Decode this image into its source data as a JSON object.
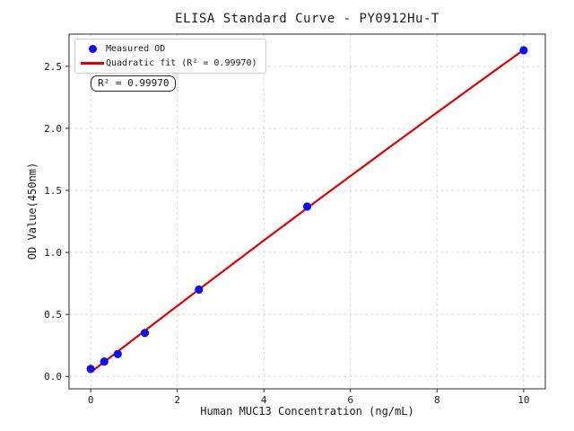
{
  "figure": {
    "background": "#ffffff"
  },
  "chart_data": {
    "type": "scatter",
    "title": "ELISA Standard Curve - PY0912Hu-T",
    "xlabel": "Human MUC13 Concentration (ng/mL)",
    "ylabel": "OD Value(450nm)",
    "xlim": [
      -0.5,
      10.5
    ],
    "ylim": [
      -0.1,
      2.76
    ],
    "xticks": [
      0,
      2,
      4,
      6,
      8,
      10
    ],
    "yticks": [
      0.0,
      0.5,
      1.0,
      1.5,
      2.0,
      2.5
    ],
    "grid": true,
    "grid_style": "dashed",
    "legend_position": "upper-left",
    "series": [
      {
        "name": "Measured OD",
        "type": "scatter",
        "marker": "circle",
        "color": "#0d0dee",
        "x": [
          0,
          0.313,
          0.625,
          1.25,
          2.5,
          5,
          10
        ],
        "y": [
          0.06,
          0.12,
          0.18,
          0.35,
          0.7,
          1.37,
          2.63
        ]
      },
      {
        "name": "Quadratic fit (R² = 0.99970)",
        "type": "line",
        "fit": "quadratic",
        "r_squared": "0.99970",
        "color": "#e00000",
        "x_range": [
          0,
          10
        ]
      }
    ],
    "annotation": {
      "text": "R² = 0.99970"
    }
  },
  "colors": {
    "spine": "#2b2b2b",
    "grid": "#d6d6d6",
    "text": "#1a1a1a",
    "legend_border": "#cccccc",
    "scatter": "#0d0dee",
    "fit_line": "#e00000"
  }
}
